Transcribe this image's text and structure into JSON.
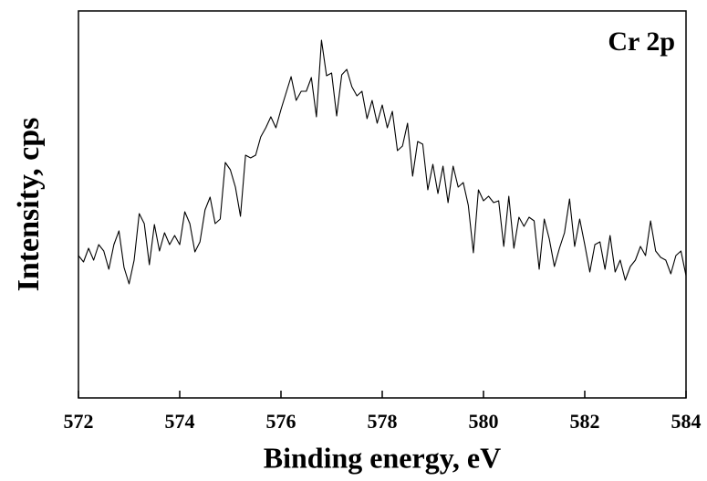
{
  "chart_data": {
    "type": "line",
    "annotation": "Cr 2p",
    "xlabel": "Binding energy, eV",
    "ylabel": "Intensity, cps",
    "xlim": [
      572,
      584
    ],
    "xticks": [
      572,
      574,
      576,
      578,
      580,
      582,
      584
    ],
    "ylim": [
      0,
      424
    ],
    "series": [
      {
        "color": "#000000",
        "x": [
          572,
          572.1,
          572.2,
          572.3,
          572.4,
          572.5,
          572.6,
          572.7,
          572.8,
          572.9,
          573,
          573.1,
          573.2,
          573.3,
          573.4,
          573.5,
          573.6,
          573.7,
          573.8,
          573.9,
          574,
          574.1,
          574.2,
          574.3,
          574.4,
          574.5,
          574.6,
          574.7,
          574.8,
          574.9,
          575,
          575.1,
          575.2,
          575.3,
          575.4,
          575.5,
          575.6,
          575.7,
          575.8,
          575.9,
          576,
          576.1,
          576.2,
          576.3,
          576.4,
          576.5,
          576.6,
          576.7,
          576.8,
          576.9,
          577,
          577.1,
          577.2,
          577.3,
          577.4,
          577.5,
          577.6,
          577.7,
          577.8,
          577.9,
          578,
          578.1,
          578.2,
          578.3,
          578.4,
          578.5,
          578.6,
          578.7,
          578.8,
          578.9,
          579,
          579.1,
          579.2,
          579.3,
          579.4,
          579.5,
          579.6,
          579.7,
          579.8,
          579.9,
          580,
          580.1,
          580.2,
          580.3,
          580.4,
          580.5,
          580.6,
          580.7,
          580.8,
          580.9,
          581,
          581.1,
          581.2,
          581.3,
          581.4,
          581.5,
          581.6,
          581.7,
          581.8,
          581.9,
          582,
          582.1,
          582.2,
          582.3,
          582.4,
          582.5,
          582.6,
          582.7,
          582.8,
          582.9,
          583,
          583.1,
          583.2,
          583.3,
          583.4,
          583.5,
          583.6,
          583.7,
          583.8,
          583.9,
          584
        ],
        "values": [
          156,
          149,
          164,
          151,
          168,
          161,
          141,
          168,
          183,
          143,
          125,
          151,
          202,
          191,
          146,
          190,
          161,
          181,
          168,
          178,
          168,
          204,
          191,
          160,
          171,
          206,
          220,
          191,
          196,
          258,
          250,
          231,
          199,
          266,
          263,
          266,
          286,
          296,
          308,
          296,
          316,
          334,
          352,
          326,
          336,
          336,
          351,
          308,
          392,
          353,
          356,
          309,
          354,
          360,
          341,
          331,
          336,
          306,
          326,
          301,
          321,
          296,
          314,
          271,
          276,
          301,
          243,
          281,
          278,
          228,
          256,
          224,
          254,
          214,
          254,
          231,
          236,
          211,
          159,
          228,
          216,
          221,
          214,
          216,
          166,
          221,
          164,
          198,
          188,
          198,
          194,
          141,
          196,
          174,
          144,
          164,
          181,
          218,
          166,
          196,
          168,
          138,
          168,
          171,
          141,
          178,
          138,
          151,
          129,
          144,
          151,
          166,
          156,
          194,
          161,
          154,
          151,
          136,
          156,
          161,
          134
        ]
      }
    ]
  }
}
